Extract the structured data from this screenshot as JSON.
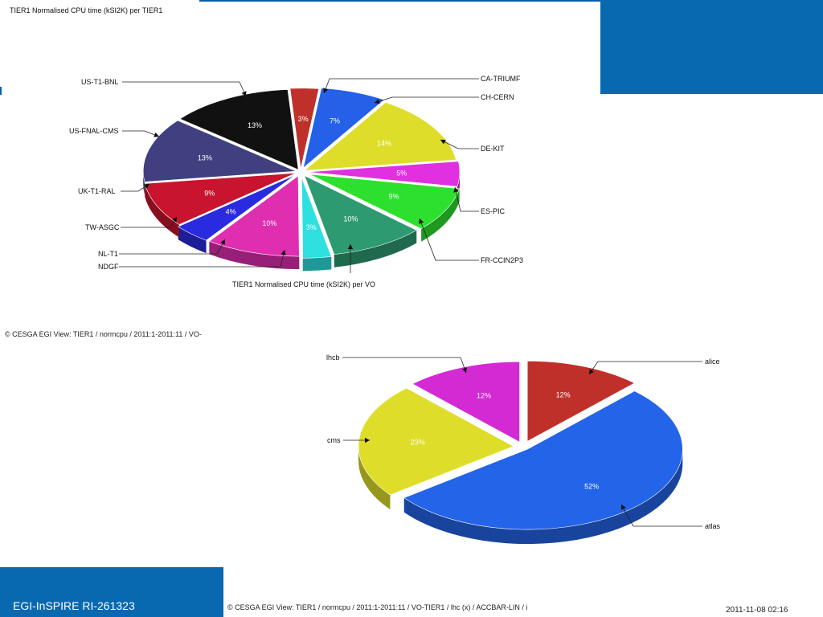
{
  "page": {
    "footer_label": "EGI-InSPIRE RI-261323",
    "timestamp": "2011-11-08 02:16",
    "credit_top": "© CESGA EGI View: TIER1 / normcpu / 2011:1-2011:11 / VO-",
    "credit_bottom": "© CESGA EGI View: TIER1 / normcpu / 2011:1-2011:11 / VO-TIER1 / lhc (x) / ACCBAR-LIN / i",
    "brand_color": "#0868b0"
  },
  "chart_data": [
    {
      "type": "pie",
      "title": "TIER1 Normalised CPU time (kSI2K) per TIER1",
      "subtitle": "TIER1 Normalised CPU time (kSI2K) per VO",
      "slices": [
        {
          "name": "CA-TRIUMF",
          "value": 3,
          "label": "3%",
          "color": "#c0302a"
        },
        {
          "name": "CH-CERN",
          "value": 7,
          "label": "7%",
          "color": "#2460e8"
        },
        {
          "name": "DE-KIT",
          "value": 14,
          "label": "14%",
          "color": "#dede2a"
        },
        {
          "name": "ES-PIC",
          "value": 5,
          "label": "5%",
          "color": "#e030e0"
        },
        {
          "name": "FR-CCIN2P3",
          "value": 9,
          "label": "9%",
          "color": "#2ee02e"
        },
        {
          "name": "",
          "value": 10,
          "label": "10%",
          "color": "#2e9a72"
        },
        {
          "name": "NDGF",
          "value": 3,
          "label": "3%",
          "color": "#2ee0e0"
        },
        {
          "name": "NL-T1",
          "value": 10,
          "label": "10%",
          "color": "#e02eb0"
        },
        {
          "name": "TW-ASGC",
          "value": 4,
          "label": "4%",
          "color": "#2a2ae0"
        },
        {
          "name": "UK-T1-RAL",
          "value": 9,
          "label": "9%",
          "color": "#c8142e"
        },
        {
          "name": "US-FNAL-CMS",
          "value": 13,
          "label": "13%",
          "color": "#404080"
        },
        {
          "name": "US-T1-BNL",
          "value": 13,
          "label": "13%",
          "color": "#111111"
        }
      ]
    },
    {
      "type": "pie",
      "slices": [
        {
          "name": "alice",
          "value": 12,
          "label": "12%",
          "color": "#c0302a"
        },
        {
          "name": "atlas",
          "value": 52,
          "label": "52%",
          "color": "#2464e8"
        },
        {
          "name": "cms",
          "value": 23,
          "label": "23%",
          "color": "#dede2a"
        },
        {
          "name": "lhcb",
          "value": 12,
          "label": "12%",
          "color": "#d42ad4"
        }
      ]
    }
  ]
}
